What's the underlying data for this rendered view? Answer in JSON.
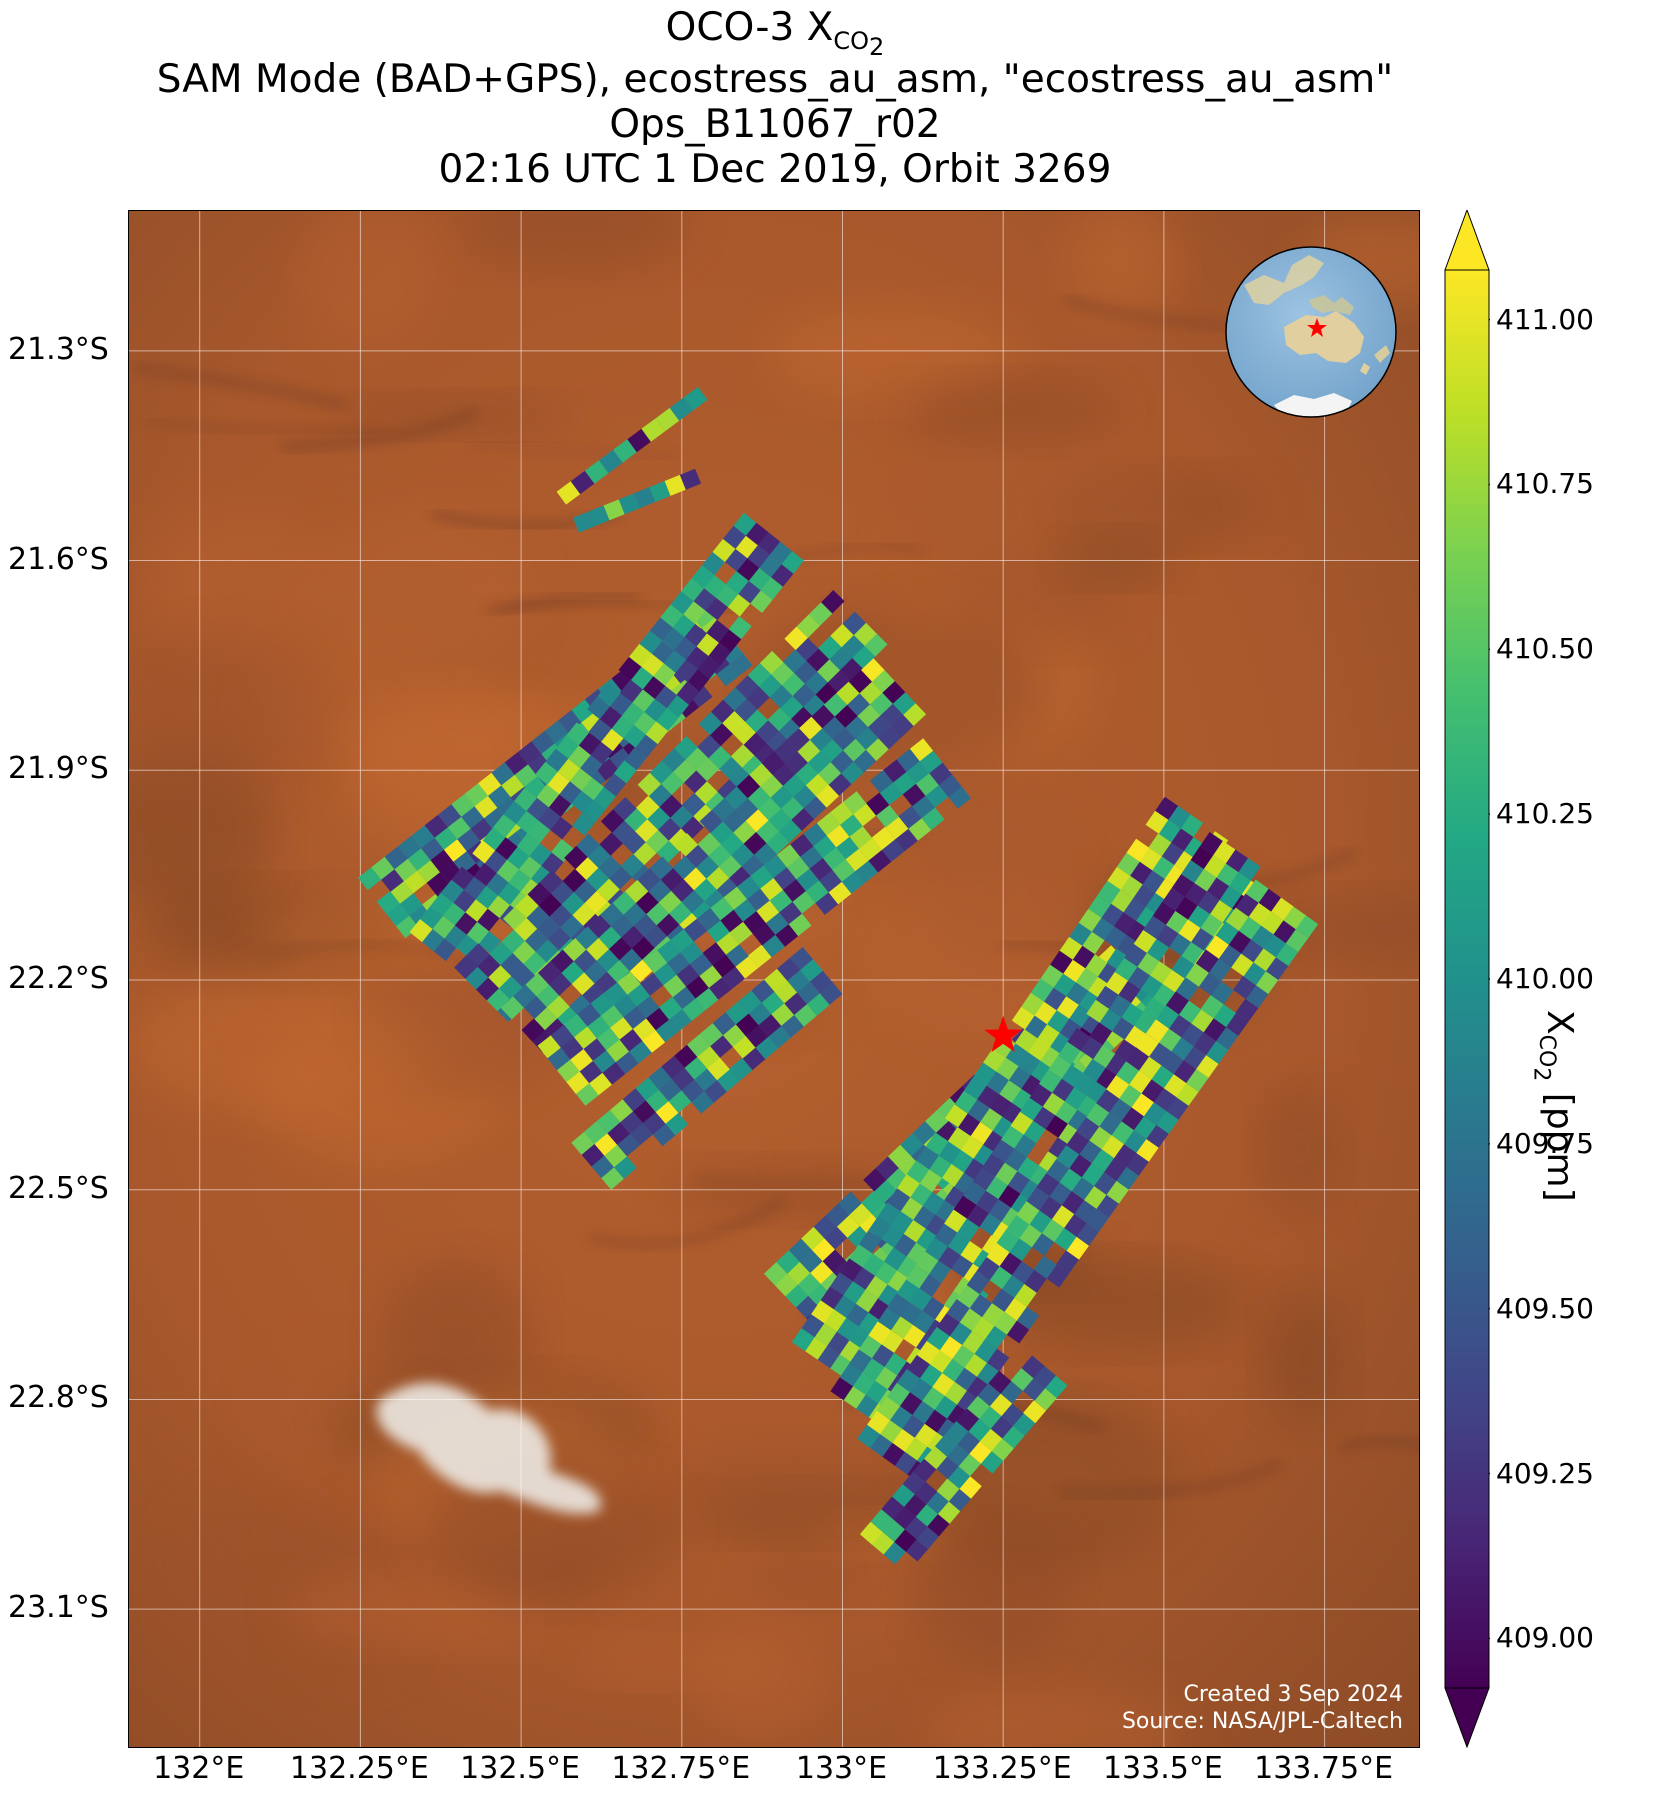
{
  "title": {
    "line1_prefix": "OCO-3 X",
    "line1_sub": "CO",
    "line1_subsub": "2",
    "line2": "SAM Mode (BAD+GPS), ecostress_au_asm, \"ecostress_au_asm\"",
    "line3": "Ops_B11067_r02",
    "line4": "02:16 UTC 1 Dec 2019, Orbit 3269"
  },
  "map": {
    "lon_ticks": [
      "132°E",
      "132.25°E",
      "132.5°E",
      "132.75°E",
      "133°E",
      "133.25°E",
      "133.5°E",
      "133.75°E"
    ],
    "lat_ticks": [
      "21.3°S",
      "21.6°S",
      "21.9°S",
      "22.2°S",
      "22.5°S",
      "22.8°S",
      "23.1°S"
    ],
    "lon_range": [
      131.89,
      133.9
    ],
    "lat_range": [
      -21.1,
      -23.3
    ],
    "target_marker": {
      "lon": 133.25,
      "lat": -22.28,
      "color": "#ff0000",
      "icon": "star-icon"
    },
    "credit_line1": "Created 3 Sep 2024",
    "credit_line2": "Source: NASA/JPL-Caltech",
    "background": "satellite imagery, orange-brown desert with white salt lake"
  },
  "inset_globe": {
    "marker_color": "#ff0000",
    "icon": "globe-icon"
  },
  "colorbar": {
    "label_prefix": "X",
    "label_sub": "CO",
    "label_subsub": "2",
    "label_suffix": " [ppm]",
    "ticks": [
      "411.00",
      "410.75",
      "410.50",
      "410.25",
      "410.00",
      "409.75",
      "409.50",
      "409.25",
      "409.00"
    ],
    "vmin": 409.0,
    "vmax": 411.0,
    "colormap": "viridis",
    "extend": "both"
  },
  "chart_data": {
    "type": "heatmap",
    "variable": "XCO2",
    "units": "ppm",
    "range": [
      409.0,
      411.0
    ],
    "swaths": [
      {
        "lon_start": 132.57,
        "lat_start": -21.52,
        "lon_end": 132.79,
        "lat_end": -21.37,
        "rows": 1
      },
      {
        "lon_start": 132.59,
        "lat_start": -21.56,
        "lon_end": 132.78,
        "lat_end": -21.49,
        "rows": 1
      },
      {
        "lon_start": 132.32,
        "lat_start": -22.14,
        "lon_end": 132.86,
        "lat_end": -21.75,
        "rows": 5
      },
      {
        "lon_start": 132.42,
        "lat_start": -22.2,
        "lon_end": 132.94,
        "lat_end": -21.6,
        "rows": 5
      },
      {
        "lon_start": 132.48,
        "lat_start": -22.26,
        "lon_end": 133.07,
        "lat_end": -21.72,
        "rows": 5
      },
      {
        "lon_start": 132.55,
        "lat_start": -22.32,
        "lon_end": 133.13,
        "lat_end": -21.82,
        "rows": 5
      },
      {
        "lon_start": 132.6,
        "lat_start": -22.38,
        "lon_end": 133.2,
        "lat_end": -21.94,
        "rows": 5
      },
      {
        "lon_start": 132.64,
        "lat_start": -22.5,
        "lon_end": 133.0,
        "lat_end": -22.22,
        "rows": 4
      },
      {
        "lon_start": 132.96,
        "lat_start": -22.7,
        "lon_end": 133.5,
        "lat_end": -22.23,
        "rows": 5
      },
      {
        "lon_start": 133.02,
        "lat_start": -22.78,
        "lon_end": 133.6,
        "lat_end": -22.0,
        "rows": 5
      },
      {
        "lon_start": 133.08,
        "lat_start": -22.85,
        "lon_end": 133.67,
        "lat_end": -22.05,
        "rows": 5
      },
      {
        "lon_start": 133.12,
        "lat_start": -22.92,
        "lon_end": 133.74,
        "lat_end": -22.12,
        "rows": 5
      },
      {
        "lon_start": 133.1,
        "lat_start": -23.05,
        "lon_end": 133.35,
        "lat_end": -22.78,
        "rows": 4
      }
    ]
  }
}
